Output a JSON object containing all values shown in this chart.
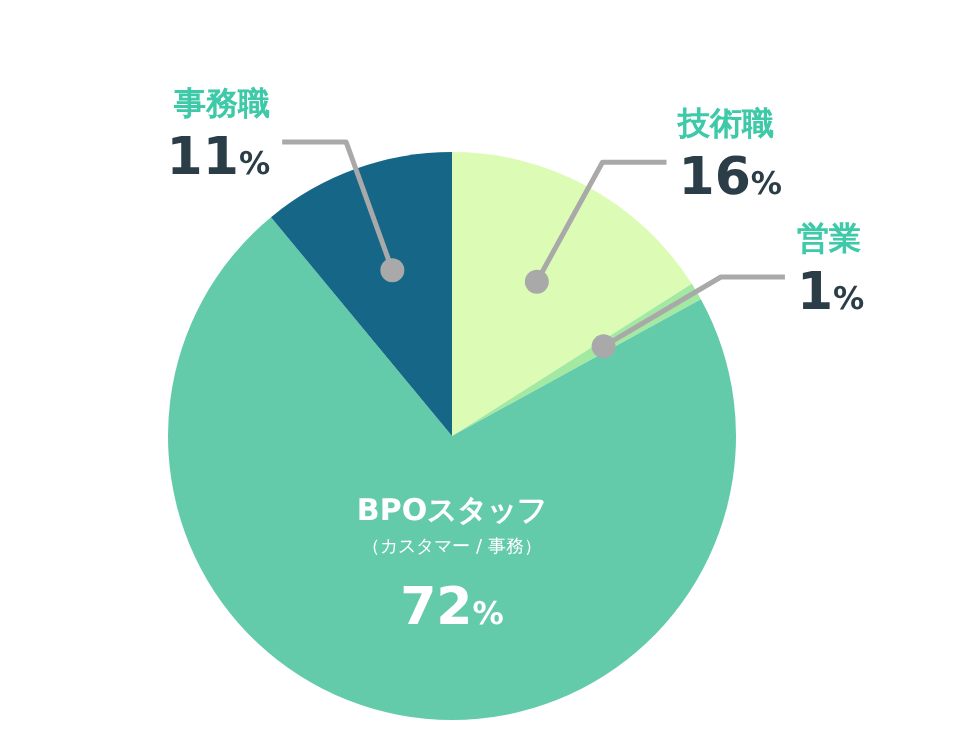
{
  "chart_data": {
    "type": "pie",
    "categories": [
      "技術職",
      "営業",
      "BPOスタッフ",
      "事務職"
    ],
    "values": [
      16,
      1,
      72,
      11
    ],
    "colors": [
      "#dcfcb6",
      "#a3e9a2",
      "#63cbaa",
      "#156687"
    ],
    "annotations": [
      "（カスタマー / 事務）"
    ],
    "value_labels": [
      "16%",
      "1%",
      "72%",
      "11%"
    ]
  }
}
